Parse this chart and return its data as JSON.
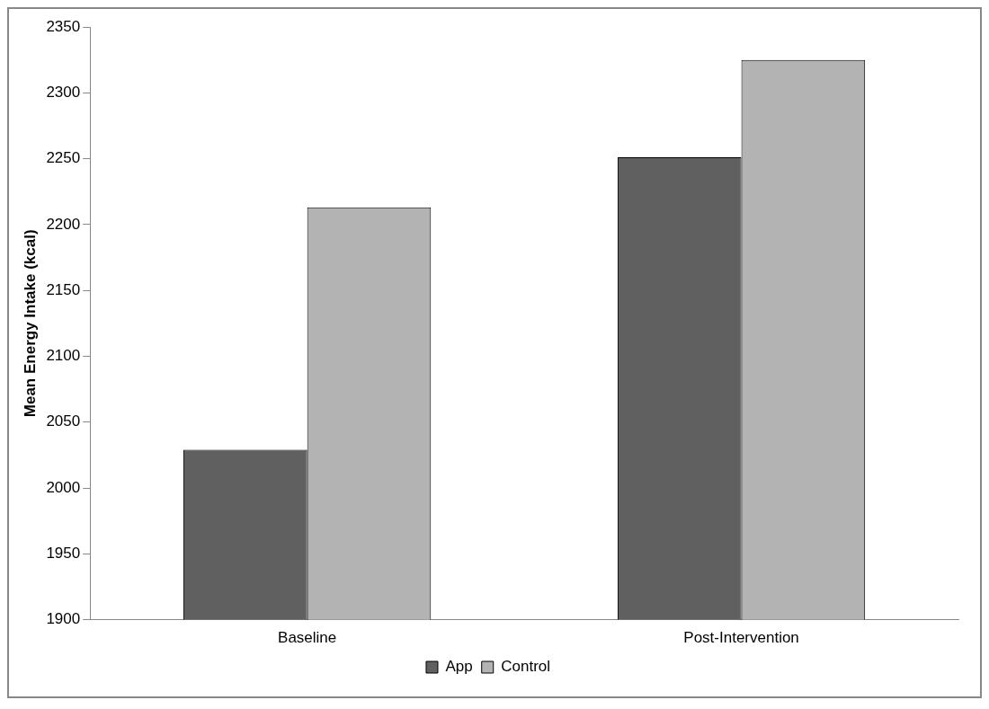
{
  "chart_data": {
    "type": "bar",
    "ylabel": "Mean Energy Intake (kcal)",
    "categories": [
      "Baseline",
      "Post-Intervention"
    ],
    "series": [
      {
        "name": "App",
        "color": "#606060",
        "values": [
          2029,
          2251
        ]
      },
      {
        "name": "Control",
        "color": "#b3b3b3",
        "values": [
          2213,
          2325
        ]
      }
    ],
    "ylim": [
      1900,
      2350
    ],
    "yticks": [
      1900,
      1950,
      2000,
      2050,
      2100,
      2150,
      2200,
      2250,
      2300,
      2350
    ],
    "grid": false,
    "legend": "bottom"
  }
}
